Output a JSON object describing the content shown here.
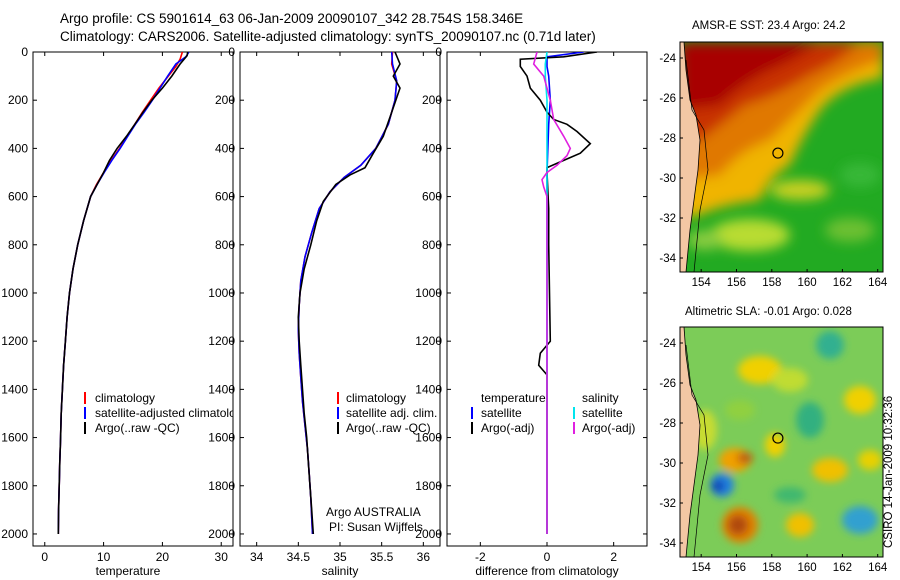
{
  "header": {
    "line1": "Argo profile: CS 5901614_63 06-Jan-2009 20090107_342 28.754S 158.346E",
    "line2": "Climatology: CARS2006. Satellite-adjusted climatology: synTS_20090107.nc (0.71d later)"
  },
  "credit": "CSIRO 14-Jan-2009 10:32:36",
  "colors": {
    "climatology": "#ff0000",
    "satellite": "#0000ff",
    "argo": "#000000",
    "salinity_satellite": "#00e5ee",
    "salinity_argo": "#e020e0"
  },
  "chart_data": [
    {
      "type": "line",
      "id": "temperature",
      "xlabel": "temperature",
      "xlim": [
        -2,
        32
      ],
      "xticks": [
        0,
        10,
        20,
        30
      ],
      "ylim": [
        0,
        2050
      ],
      "yticks": [
        0,
        200,
        400,
        600,
        800,
        1000,
        1200,
        1400,
        1600,
        1800,
        2000
      ],
      "y_reversed": true,
      "legend": [
        "climatology",
        "satellite-adjusted climatology",
        "Argo(..raw -QC)"
      ],
      "series": [
        {
          "name": "climatology",
          "color": "#ff0000",
          "points": [
            [
              23.4,
              0
            ],
            [
              23.0,
              30
            ],
            [
              22.3,
              60
            ],
            [
              21.0,
              100
            ],
            [
              19.4,
              150
            ],
            [
              18.0,
              200
            ],
            [
              16.6,
              250
            ],
            [
              15.3,
              300
            ],
            [
              14.0,
              350
            ],
            [
              12.7,
              400
            ],
            [
              11.3,
              450
            ],
            [
              10.0,
              500
            ],
            [
              8.8,
              550
            ],
            [
              7.8,
              600
            ],
            [
              6.6,
              700
            ],
            [
              5.6,
              800
            ],
            [
              4.8,
              900
            ],
            [
              4.2,
              1000
            ],
            [
              3.8,
              1100
            ],
            [
              3.5,
              1200
            ],
            [
              3.2,
              1300
            ],
            [
              3.0,
              1400
            ],
            [
              2.8,
              1500
            ],
            [
              2.7,
              1600
            ],
            [
              2.55,
              1700
            ],
            [
              2.45,
              1800
            ],
            [
              2.35,
              1900
            ],
            [
              2.3,
              2000
            ]
          ]
        },
        {
          "name": "satellite-adjusted climatology",
          "color": "#0000ff",
          "points": [
            [
              24.5,
              0
            ],
            [
              24.0,
              20
            ],
            [
              22.3,
              50
            ],
            [
              20.9,
              100
            ],
            [
              19.6,
              150
            ],
            [
              18.3,
              200
            ],
            [
              16.9,
              250
            ],
            [
              15.4,
              300
            ],
            [
              14.1,
              350
            ],
            [
              12.8,
              400
            ],
            [
              11.4,
              450
            ],
            [
              10.1,
              500
            ],
            [
              8.9,
              550
            ],
            [
              7.8,
              600
            ],
            [
              6.6,
              700
            ],
            [
              5.6,
              800
            ],
            [
              4.8,
              900
            ],
            [
              4.2,
              1000
            ],
            [
              3.8,
              1100
            ],
            [
              3.5,
              1200
            ],
            [
              3.2,
              1300
            ],
            [
              3.0,
              1400
            ],
            [
              2.8,
              1500
            ],
            [
              2.7,
              1600
            ],
            [
              2.55,
              1700
            ],
            [
              2.45,
              1800
            ],
            [
              2.35,
              1900
            ],
            [
              2.3,
              2000
            ]
          ]
        },
        {
          "name": "Argo(..raw -QC)",
          "color": "#000000",
          "points": [
            [
              24.3,
              0
            ],
            [
              24.2,
              15
            ],
            [
              23.0,
              50
            ],
            [
              21.6,
              100
            ],
            [
              20.0,
              150
            ],
            [
              18.2,
              200
            ],
            [
              16.7,
              250
            ],
            [
              15.3,
              300
            ],
            [
              13.9,
              350
            ],
            [
              12.3,
              400
            ],
            [
              11.0,
              450
            ],
            [
              10.0,
              500
            ],
            [
              8.9,
              550
            ],
            [
              7.8,
              600
            ],
            [
              6.6,
              700
            ],
            [
              5.6,
              800
            ],
            [
              4.8,
              900
            ],
            [
              4.2,
              1000
            ],
            [
              3.8,
              1100
            ],
            [
              3.5,
              1200
            ],
            [
              3.2,
              1300
            ],
            [
              3.0,
              1400
            ],
            [
              2.8,
              1500
            ],
            [
              2.7,
              1600
            ],
            [
              2.55,
              1700
            ],
            [
              2.45,
              1800
            ],
            [
              2.35,
              1900
            ],
            [
              2.3,
              2000
            ]
          ]
        }
      ]
    },
    {
      "type": "line",
      "id": "salinity",
      "xlabel": "salinity",
      "xlim": [
        33.8,
        36.2
      ],
      "xticks": [
        34,
        34.5,
        35,
        35.5,
        36
      ],
      "ylim": [
        0,
        2050
      ],
      "yticks": [
        0,
        200,
        400,
        600,
        800,
        1000,
        1200,
        1400,
        1600,
        1800,
        2000
      ],
      "y_reversed": true,
      "legend": [
        "climatology",
        "satellite adj. clim.",
        "Argo(..raw -QC)"
      ],
      "annotation": [
        "Argo AUSTRALIA",
        "PI: Susan Wijffels"
      ],
      "series": [
        {
          "name": "climatology",
          "color": "#ff0000",
          "points": [
            [
              35.63,
              0
            ],
            [
              35.62,
              50
            ],
            [
              35.68,
              120
            ],
            [
              35.66,
              200
            ],
            [
              35.58,
              300
            ],
            [
              35.43,
              400
            ],
            [
              35.25,
              470
            ],
            [
              35.05,
              520
            ],
            [
              34.88,
              580
            ],
            [
              34.75,
              650
            ],
            [
              34.66,
              750
            ],
            [
              34.58,
              850
            ],
            [
              34.53,
              950
            ],
            [
              34.51,
              1050
            ],
            [
              34.5,
              1150
            ],
            [
              34.51,
              1250
            ],
            [
              34.53,
              1350
            ],
            [
              34.55,
              1450
            ],
            [
              34.58,
              1550
            ],
            [
              34.61,
              1650
            ],
            [
              34.63,
              1750
            ],
            [
              34.65,
              1850
            ],
            [
              34.67,
              2000
            ]
          ]
        },
        {
          "name": "satellite adj. clim.",
          "color": "#0000ff",
          "points": [
            [
              35.62,
              0
            ],
            [
              35.63,
              50
            ],
            [
              35.68,
              120
            ],
            [
              35.66,
              200
            ],
            [
              35.58,
              300
            ],
            [
              35.43,
              400
            ],
            [
              35.25,
              470
            ],
            [
              35.05,
              520
            ],
            [
              34.88,
              580
            ],
            [
              34.75,
              650
            ],
            [
              34.66,
              750
            ],
            [
              34.58,
              850
            ],
            [
              34.53,
              950
            ],
            [
              34.51,
              1050
            ],
            [
              34.5,
              1150
            ],
            [
              34.51,
              1250
            ],
            [
              34.53,
              1350
            ],
            [
              34.55,
              1450
            ],
            [
              34.58,
              1550
            ],
            [
              34.61,
              1650
            ],
            [
              34.63,
              1750
            ],
            [
              34.65,
              1850
            ],
            [
              34.67,
              2000
            ]
          ]
        },
        {
          "name": "Argo(..raw -QC)",
          "color": "#000000",
          "points": [
            [
              35.66,
              0
            ],
            [
              35.72,
              50
            ],
            [
              35.64,
              100
            ],
            [
              35.72,
              150
            ],
            [
              35.62,
              250
            ],
            [
              35.52,
              350
            ],
            [
              35.4,
              420
            ],
            [
              35.3,
              480
            ],
            [
              35.12,
              510
            ],
            [
              34.95,
              550
            ],
            [
              34.8,
              620
            ],
            [
              34.72,
              700
            ],
            [
              34.65,
              800
            ],
            [
              34.57,
              900
            ],
            [
              34.52,
              1000
            ],
            [
              34.5,
              1100
            ],
            [
              34.51,
              1200
            ],
            [
              34.53,
              1300
            ],
            [
              34.55,
              1400
            ],
            [
              34.57,
              1500
            ],
            [
              34.6,
              1600
            ],
            [
              34.62,
              1700
            ],
            [
              34.64,
              1800
            ],
            [
              34.66,
              1900
            ],
            [
              34.68,
              2000
            ]
          ]
        }
      ]
    },
    {
      "type": "line",
      "id": "difference",
      "xlabel": "difference from climatology",
      "xlim": [
        -3,
        3
      ],
      "xticks": [
        -2,
        0,
        2
      ],
      "ylim": [
        0,
        2050
      ],
      "yticks": [
        0,
        200,
        400,
        600,
        800,
        1000,
        1200,
        1400,
        1600,
        1800,
        2000
      ],
      "y_reversed": true,
      "legend_left": [
        "temperature",
        "satellite",
        "Argo(-adj)"
      ],
      "legend_right": [
        "salinity",
        "satellite",
        "Argo(-adj)"
      ],
      "series": [
        {
          "name": "temperature satellite",
          "color": "#0000ff",
          "points": [
            [
              1.1,
              0
            ],
            [
              0.0,
              20
            ],
            [
              0.0,
              60
            ],
            [
              0.05,
              100
            ],
            [
              0.1,
              200
            ],
            [
              0.05,
              300
            ],
            [
              0.0,
              500
            ],
            [
              0.0,
              2000
            ]
          ]
        },
        {
          "name": "temperature Argo(-adj)",
          "color": "#000000",
          "points": [
            [
              1.5,
              0
            ],
            [
              0.5,
              20
            ],
            [
              -0.8,
              30
            ],
            [
              -0.8,
              60
            ],
            [
              -0.6,
              100
            ],
            [
              -0.5,
              150
            ],
            [
              -0.2,
              200
            ],
            [
              0.0,
              250
            ],
            [
              0.2,
              280
            ],
            [
              0.6,
              300
            ],
            [
              0.9,
              330
            ],
            [
              1.3,
              380
            ],
            [
              1.0,
              420
            ],
            [
              0.5,
              450
            ],
            [
              0.0,
              480
            ],
            [
              0.0,
              500
            ],
            [
              0.05,
              650
            ],
            [
              0.05,
              800
            ],
            [
              0.1,
              1200
            ],
            [
              -0.2,
              1250
            ],
            [
              -0.25,
              1300
            ],
            [
              0.0,
              1340
            ],
            [
              0.0,
              2000
            ]
          ]
        },
        {
          "name": "salinity satellite",
          "color": "#00e5ee",
          "points": [
            [
              0.0,
              0
            ],
            [
              -0.05,
              50
            ],
            [
              -0.05,
              100
            ],
            [
              0.0,
              200
            ],
            [
              0.0,
              500
            ],
            [
              0.0,
              1000
            ],
            [
              0.0,
              1500
            ],
            [
              0.0,
              2000
            ]
          ]
        },
        {
          "name": "salinity Argo(-adj)",
          "color": "#e020e0",
          "points": [
            [
              -0.3,
              0
            ],
            [
              -0.4,
              50
            ],
            [
              -0.1,
              100
            ],
            [
              0.1,
              200
            ],
            [
              0.2,
              280
            ],
            [
              0.5,
              350
            ],
            [
              0.7,
              400
            ],
            [
              0.6,
              430
            ],
            [
              0.3,
              470
            ],
            [
              0.0,
              500
            ],
            [
              -0.15,
              530
            ],
            [
              -0.1,
              560
            ],
            [
              0.0,
              600
            ],
            [
              0.0,
              800
            ],
            [
              0.0,
              1500
            ],
            [
              0.0,
              2000
            ]
          ]
        }
      ]
    },
    {
      "type": "heatmap",
      "id": "sst_map",
      "title": "AMSR-E SST: 23.4  Argo: 24.2",
      "xlim": [
        152.8,
        164.3
      ],
      "ylim": [
        -34.7,
        -23.2
      ],
      "xticks": [
        154,
        156,
        158,
        160,
        162,
        164
      ],
      "yticks": [
        -24,
        -26,
        -28,
        -30,
        -32,
        -34
      ],
      "profile_location": [
        158.346,
        -28.754
      ],
      "description_colors": {
        "warm": "#b40000",
        "mid": "#f0c800",
        "cool": "#20b020"
      }
    },
    {
      "type": "heatmap",
      "id": "sla_map",
      "title": "Altimetric SLA: -0.01  Argo: 0.028",
      "xlim": [
        152.8,
        164.3
      ],
      "ylim": [
        -34.7,
        -23.2
      ],
      "xticks": [
        154,
        156,
        158,
        160,
        162,
        164
      ],
      "yticks": [
        -24,
        -26,
        -28,
        -30,
        -32,
        -34
      ],
      "profile_location": [
        158.346,
        -28.754
      ]
    }
  ]
}
